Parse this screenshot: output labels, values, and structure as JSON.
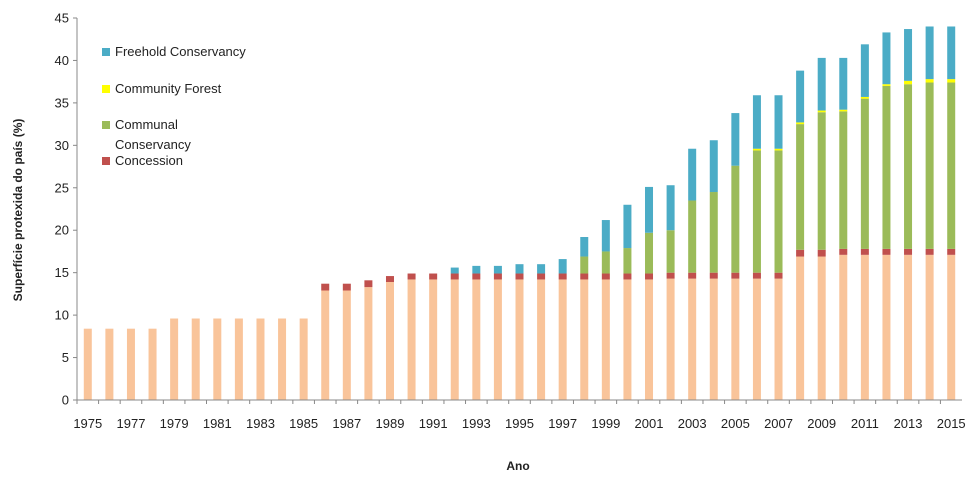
{
  "chart_data": {
    "type": "bar",
    "stacked": true,
    "xlabel": "Ano",
    "ylabel": "Superfície protexida do país (%)",
    "ylim": [
      0,
      45
    ],
    "yticks": [
      0,
      5,
      10,
      15,
      20,
      25,
      30,
      35,
      40,
      45
    ],
    "grid": false,
    "legend_position": "top-left",
    "categories": [
      "1975",
      "1976",
      "1977",
      "1978",
      "1979",
      "1980",
      "1981",
      "1982",
      "1983",
      "1984",
      "1985",
      "1986",
      "1987",
      "1988",
      "1989",
      "1990",
      "1991",
      "1992",
      "1993",
      "1994",
      "1995",
      "1996",
      "1997",
      "1998",
      "1999",
      "2000",
      "2001",
      "2002",
      "2003",
      "2004",
      "2005",
      "2006",
      "2007",
      "2008",
      "2009",
      "2010",
      "2011",
      "2012",
      "2013",
      "2014",
      "2015"
    ],
    "xtick_labels": [
      "1975",
      "1977",
      "1979",
      "1981",
      "1983",
      "1985",
      "1987",
      "1989",
      "1991",
      "1993",
      "1995",
      "1997",
      "1999",
      "2001",
      "2003",
      "2005",
      "2007",
      "2009",
      "2011",
      "2013",
      "2015"
    ],
    "series": [
      {
        "name": "",
        "color": "#f9c49a",
        "values": [
          8.4,
          8.4,
          8.4,
          8.4,
          9.6,
          9.6,
          9.6,
          9.6,
          9.6,
          9.6,
          9.6,
          12.9,
          12.9,
          13.3,
          13.9,
          14.2,
          14.2,
          14.2,
          14.2,
          14.2,
          14.2,
          14.2,
          14.2,
          14.2,
          14.2,
          14.2,
          14.2,
          14.3,
          14.3,
          14.3,
          14.3,
          14.3,
          14.3,
          16.9,
          16.9,
          17.1,
          17.1,
          17.1,
          17.1,
          17.1,
          17.1
        ]
      },
      {
        "name": "Concession",
        "color": "#c0504d",
        "values": [
          0,
          0,
          0,
          0,
          0,
          0,
          0,
          0,
          0,
          0,
          0,
          0.8,
          0.8,
          0.8,
          0.7,
          0.7,
          0.7,
          0.7,
          0.7,
          0.7,
          0.7,
          0.7,
          0.7,
          0.7,
          0.7,
          0.7,
          0.7,
          0.7,
          0.7,
          0.7,
          0.7,
          0.7,
          0.7,
          0.8,
          0.8,
          0.7,
          0.7,
          0.7,
          0.7,
          0.7,
          0.7
        ]
      },
      {
        "name": "Communal Conservancy",
        "color": "#9bbb59",
        "values": [
          0,
          0,
          0,
          0,
          0,
          0,
          0,
          0,
          0,
          0,
          0,
          0,
          0,
          0,
          0,
          0,
          0,
          0,
          0,
          0,
          0,
          0,
          0,
          2.0,
          2.6,
          3.0,
          4.8,
          5.0,
          8.5,
          9.5,
          12.6,
          14.4,
          14.4,
          14.8,
          16.2,
          16.2,
          17.7,
          19.2,
          19.4,
          19.6,
          19.6
        ]
      },
      {
        "name": "Community Forest",
        "color": "#ffff00",
        "values": [
          0,
          0,
          0,
          0,
          0,
          0,
          0,
          0,
          0,
          0,
          0,
          0,
          0,
          0,
          0,
          0,
          0,
          0,
          0,
          0,
          0,
          0,
          0,
          0,
          0,
          0,
          0,
          0,
          0,
          0,
          0,
          0.2,
          0.2,
          0.2,
          0.2,
          0.2,
          0.2,
          0.2,
          0.4,
          0.4,
          0.4
        ]
      },
      {
        "name": "Freehold Conservancy",
        "color": "#4bacc6",
        "values": [
          0,
          0,
          0,
          0,
          0,
          0,
          0,
          0,
          0,
          0,
          0,
          0,
          0,
          0,
          0,
          0,
          0,
          0.7,
          0.9,
          0.9,
          1.1,
          1.1,
          1.7,
          2.3,
          3.7,
          5.1,
          5.4,
          5.3,
          6.1,
          6.1,
          6.2,
          6.3,
          6.3,
          6.1,
          6.2,
          6.1,
          6.2,
          6.1,
          6.1,
          6.2,
          6.2
        ]
      }
    ],
    "legend": [
      {
        "label": "Freehold Conservancy",
        "color": "#4bacc6"
      },
      {
        "label": "Community Forest",
        "color": "#ffff00"
      },
      {
        "label": "Communal",
        "label2": "Conservancy",
        "color": "#9bbb59"
      },
      {
        "label": "Concession",
        "color": "#c0504d"
      }
    ]
  }
}
